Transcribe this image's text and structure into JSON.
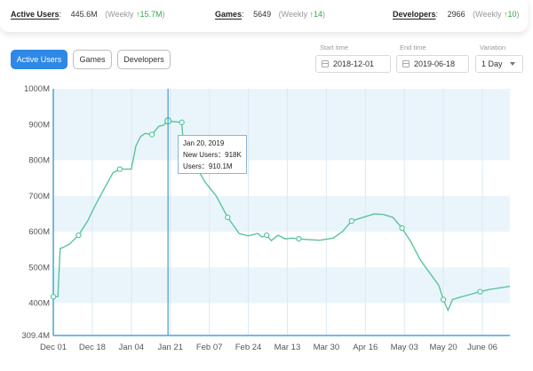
{
  "stats": [
    {
      "label": "Active Users",
      "value": "445.6M",
      "weekly": "(Weekly",
      "change": "↑15.7M",
      "close": ")"
    },
    {
      "label": "Games",
      "value": "5649",
      "weekly": "(Weekly",
      "change": "↑14",
      "close": ")"
    },
    {
      "label": "Developers",
      "value": "2966",
      "weekly": "(Weekly",
      "change": "↑10",
      "close": ")"
    }
  ],
  "tabs": [
    {
      "label": "Active Users",
      "active": true
    },
    {
      "label": "Games",
      "active": false
    },
    {
      "label": "Developers",
      "active": false
    }
  ],
  "controls": {
    "start_label": "Start time",
    "start_value": "2018-12-01",
    "end_label": "End time",
    "end_value": "2019-06-18",
    "variation_label": "Variation",
    "variation_value": "1 Day"
  },
  "tooltip": {
    "date": "Jan 20, 2019",
    "new_users": "New Users：918K",
    "users": "Users：910.1M"
  },
  "colors": {
    "accent": "#2f87e6",
    "line": "#5cc49a",
    "band": "#eaf5fb",
    "positive": "#3aa54b"
  },
  "chart_data": {
    "type": "line",
    "x_tick_labels": [
      "Dec 01",
      "Dec 18",
      "Jan 04",
      "Jan 21",
      "Feb 07",
      "Feb 24",
      "Mar 13",
      "Mar 30",
      "Apr 16",
      "May 03",
      "May 20",
      "June 06"
    ],
    "y_tick_labels": [
      "1000M",
      "900M",
      "800M",
      "700M",
      "600M",
      "500M",
      "400M",
      "309.4M"
    ],
    "ylim": [
      309.4,
      1000
    ],
    "y_ticks": [
      309.4,
      400,
      500,
      600,
      700,
      800,
      900,
      1000
    ],
    "x_range": [
      "2018-12-01",
      "2019-06-18"
    ],
    "series": [
      {
        "x": [
          "2018-12-01",
          "2018-12-03",
          "2018-12-04",
          "2018-12-05",
          "2018-12-08",
          "2018-12-12",
          "2018-12-16",
          "2018-12-19",
          "2018-12-24",
          "2018-12-27",
          "2018-12-30",
          "2019-01-04",
          "2019-01-06",
          "2019-01-08",
          "2019-01-10",
          "2019-01-13",
          "2019-01-16",
          "2019-01-18",
          "2019-01-20",
          "2019-01-22",
          "2019-01-26",
          "2019-01-27",
          "2019-02-02",
          "2019-02-05",
          "2019-02-10",
          "2019-02-15",
          "2019-02-20",
          "2019-02-24",
          "2019-02-28",
          "2019-03-02",
          "2019-03-04",
          "2019-03-06",
          "2019-03-09",
          "2019-03-12",
          "2019-03-15",
          "2019-03-18",
          "2019-03-22",
          "2019-03-27",
          "2019-04-02",
          "2019-04-06",
          "2019-04-10",
          "2019-04-16",
          "2019-04-20",
          "2019-04-24",
          "2019-04-28",
          "2019-05-02",
          "2019-05-06",
          "2019-05-10",
          "2019-05-14",
          "2019-05-18",
          "2019-05-20",
          "2019-05-22",
          "2019-05-24",
          "2019-05-28",
          "2019-06-01",
          "2019-06-05",
          "2019-06-09",
          "2019-06-13",
          "2019-06-18"
        ],
        "values": [
          418,
          418,
          553,
          555,
          565,
          590,
          630,
          670,
          730,
          765,
          775,
          775,
          840,
          866,
          875,
          872,
          895,
          898,
          910,
          908,
          906,
          820,
          775,
          740,
          700,
          640,
          595,
          588,
          595,
          585,
          590,
          575,
          590,
          580,
          582,
          580,
          578,
          576,
          582,
          600,
          630,
          642,
          650,
          648,
          640,
          610,
          570,
          520,
          485,
          450,
          410,
          380,
          410,
          418,
          425,
          432,
          438,
          442,
          447
        ]
      }
    ],
    "cursor_date": "2019-01-20",
    "grid": true
  }
}
